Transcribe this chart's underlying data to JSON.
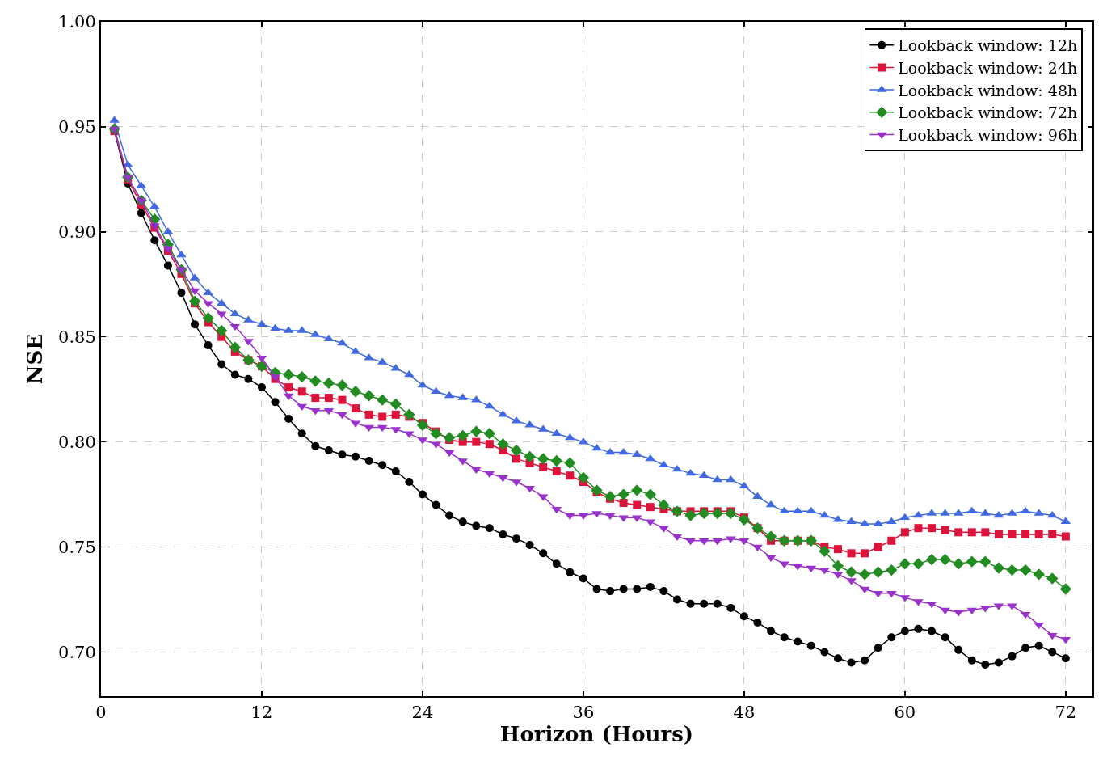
{
  "chart_data": {
    "type": "line",
    "xlabel": "Horizon (Hours)",
    "ylabel": "NSE",
    "x": [
      1,
      2,
      3,
      4,
      5,
      6,
      7,
      8,
      9,
      10,
      11,
      12,
      13,
      14,
      15,
      16,
      17,
      18,
      19,
      20,
      21,
      22,
      23,
      24,
      25,
      26,
      27,
      28,
      29,
      30,
      31,
      32,
      33,
      34,
      35,
      36,
      37,
      38,
      39,
      40,
      41,
      42,
      43,
      44,
      45,
      46,
      47,
      48,
      49,
      50,
      51,
      52,
      53,
      54,
      55,
      56,
      57,
      58,
      59,
      60,
      61,
      62,
      63,
      64,
      65,
      66,
      67,
      68,
      69,
      70,
      71,
      72
    ],
    "xlim": [
      0,
      74
    ],
    "xticks": [
      0,
      12,
      24,
      36,
      48,
      60,
      72
    ],
    "ylim": [
      0.679,
      1.0
    ],
    "yticks": [
      {
        "value": 0.7,
        "label": "0.70"
      },
      {
        "value": 0.75,
        "label": "0.75"
      },
      {
        "value": 0.8,
        "label": "0.80"
      },
      {
        "value": 0.85,
        "label": "0.85"
      },
      {
        "value": 0.9,
        "label": "0.90"
      },
      {
        "value": 0.95,
        "label": "0.95"
      },
      {
        "value": 1.0,
        "label": "1.00"
      }
    ],
    "grid": true,
    "legend": "top right",
    "line_style": "solid",
    "series": [
      {
        "name": "Lookback window: 12h",
        "color": "#000000",
        "marker": "circle",
        "values": [
          0.948,
          0.923,
          0.909,
          0.896,
          0.884,
          0.871,
          0.856,
          0.846,
          0.837,
          0.832,
          0.83,
          0.826,
          0.819,
          0.811,
          0.804,
          0.798,
          0.796,
          0.794,
          0.793,
          0.791,
          0.789,
          0.786,
          0.781,
          0.775,
          0.77,
          0.765,
          0.762,
          0.76,
          0.759,
          0.756,
          0.754,
          0.751,
          0.747,
          0.742,
          0.738,
          0.735,
          0.73,
          0.729,
          0.73,
          0.73,
          0.731,
          0.729,
          0.725,
          0.723,
          0.723,
          0.723,
          0.721,
          0.717,
          0.714,
          0.71,
          0.707,
          0.705,
          0.703,
          0.7,
          0.697,
          0.695,
          0.696,
          0.702,
          0.707,
          0.71,
          0.711,
          0.71,
          0.707,
          0.701,
          0.696,
          0.694,
          0.695,
          0.698,
          0.702,
          0.703,
          0.7,
          0.697
        ]
      },
      {
        "name": "Lookback window: 24h",
        "color": "#dc143c",
        "marker": "square",
        "values": [
          0.948,
          0.925,
          0.913,
          0.902,
          0.891,
          0.88,
          0.866,
          0.857,
          0.85,
          0.843,
          0.839,
          0.836,
          0.83,
          0.826,
          0.824,
          0.821,
          0.821,
          0.82,
          0.816,
          0.813,
          0.812,
          0.813,
          0.812,
          0.809,
          0.805,
          0.801,
          0.8,
          0.8,
          0.799,
          0.796,
          0.792,
          0.79,
          0.788,
          0.786,
          0.784,
          0.781,
          0.776,
          0.773,
          0.771,
          0.77,
          0.769,
          0.768,
          0.767,
          0.767,
          0.767,
          0.767,
          0.767,
          0.764,
          0.759,
          0.753,
          0.753,
          0.753,
          0.753,
          0.75,
          0.749,
          0.747,
          0.747,
          0.75,
          0.753,
          0.757,
          0.759,
          0.759,
          0.758,
          0.757,
          0.757,
          0.757,
          0.756,
          0.756,
          0.756,
          0.756,
          0.756,
          0.755
        ]
      },
      {
        "name": "Lookback window: 48h",
        "color": "#4169e1",
        "marker": "triangle",
        "values": [
          0.953,
          0.932,
          0.922,
          0.912,
          0.9,
          0.889,
          0.878,
          0.871,
          0.866,
          0.861,
          0.858,
          0.856,
          0.854,
          0.853,
          0.853,
          0.851,
          0.849,
          0.847,
          0.843,
          0.84,
          0.838,
          0.835,
          0.832,
          0.827,
          0.824,
          0.822,
          0.821,
          0.82,
          0.817,
          0.813,
          0.81,
          0.808,
          0.806,
          0.804,
          0.802,
          0.8,
          0.797,
          0.795,
          0.795,
          0.794,
          0.792,
          0.789,
          0.787,
          0.785,
          0.784,
          0.782,
          0.782,
          0.779,
          0.774,
          0.77,
          0.767,
          0.767,
          0.767,
          0.765,
          0.763,
          0.762,
          0.761,
          0.761,
          0.762,
          0.764,
          0.765,
          0.766,
          0.766,
          0.766,
          0.767,
          0.766,
          0.765,
          0.766,
          0.767,
          0.766,
          0.765,
          0.762
        ]
      },
      {
        "name": "Lookback window: 72h",
        "color": "#228b22",
        "marker": "diamond",
        "values": [
          0.949,
          0.926,
          0.915,
          0.906,
          0.894,
          0.882,
          0.867,
          0.859,
          0.853,
          0.845,
          0.839,
          0.836,
          0.833,
          0.832,
          0.831,
          0.829,
          0.828,
          0.827,
          0.824,
          0.822,
          0.82,
          0.818,
          0.813,
          0.808,
          0.804,
          0.802,
          0.803,
          0.805,
          0.804,
          0.799,
          0.796,
          0.793,
          0.792,
          0.791,
          0.79,
          0.783,
          0.777,
          0.774,
          0.775,
          0.777,
          0.775,
          0.77,
          0.767,
          0.765,
          0.766,
          0.766,
          0.766,
          0.763,
          0.759,
          0.755,
          0.753,
          0.753,
          0.753,
          0.748,
          0.741,
          0.738,
          0.737,
          0.738,
          0.739,
          0.742,
          0.742,
          0.744,
          0.744,
          0.742,
          0.743,
          0.743,
          0.74,
          0.739,
          0.739,
          0.737,
          0.735,
          0.73
        ]
      },
      {
        "name": "Lookback window: 96h",
        "color": "#9932cc",
        "marker": "triangle-down",
        "values": [
          0.949,
          0.926,
          0.915,
          0.903,
          0.892,
          0.882,
          0.872,
          0.866,
          0.861,
          0.855,
          0.848,
          0.84,
          0.831,
          0.822,
          0.817,
          0.815,
          0.815,
          0.813,
          0.809,
          0.807,
          0.807,
          0.806,
          0.804,
          0.801,
          0.799,
          0.795,
          0.791,
          0.787,
          0.785,
          0.783,
          0.781,
          0.778,
          0.774,
          0.768,
          0.765,
          0.765,
          0.766,
          0.765,
          0.764,
          0.764,
          0.762,
          0.759,
          0.755,
          0.753,
          0.753,
          0.753,
          0.754,
          0.753,
          0.75,
          0.745,
          0.742,
          0.741,
          0.74,
          0.739,
          0.737,
          0.734,
          0.73,
          0.728,
          0.728,
          0.726,
          0.724,
          0.723,
          0.72,
          0.719,
          0.72,
          0.721,
          0.722,
          0.722,
          0.718,
          0.713,
          0.708,
          0.706
        ]
      }
    ]
  }
}
